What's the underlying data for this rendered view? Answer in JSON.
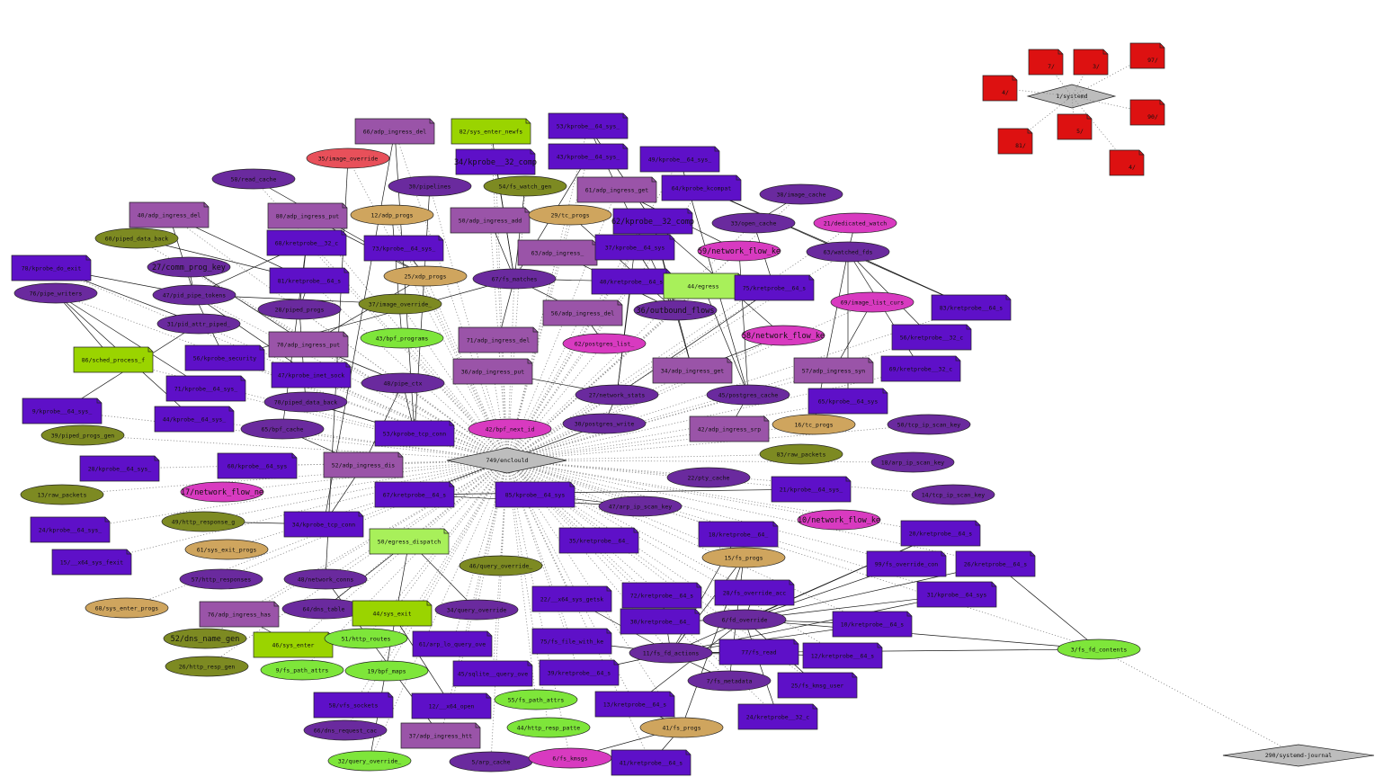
{
  "palette": {
    "prog_dark": "#5e10c8",
    "prog_mid": "#9a54a8",
    "map_purple": "#6a2a9e",
    "map_olive": "#7d8a22",
    "map_tan": "#cfa55e",
    "map_pink": "#d83ac0",
    "map_green": "#7ee63a",
    "map_red": "#e8505a",
    "note_green": "#9ad400",
    "note_lime": "#a8f05a",
    "proc_gray": "#bdbdbd",
    "proc_red": "#dd1111"
  },
  "hubs": {
    "enclould": "749/enclould",
    "systemd": "1/systemd",
    "journal": "290/systemd-journal"
  },
  "nodes": [
    {
      "id": "n1",
      "label": "66/adp_ingress_del",
      "shape": "note",
      "color": "prog_mid"
    },
    {
      "id": "n2",
      "label": "82/sys_enter_newfs",
      "shape": "note",
      "color": "note_green"
    },
    {
      "id": "n3",
      "label": "53/kprobe__64_sys_",
      "shape": "note",
      "color": "prog_dark"
    },
    {
      "id": "n4",
      "label": "35/image_override",
      "shape": "ellipse",
      "color": "map_red"
    },
    {
      "id": "n5",
      "label": "34/kprobe__32_comp",
      "shape": "note",
      "color": "prog_dark",
      "big": true
    },
    {
      "id": "n6",
      "label": "43/kprobe__64_sys_",
      "shape": "note",
      "color": "prog_dark"
    },
    {
      "id": "n7",
      "label": "49/kprobe__64_sys_",
      "shape": "note",
      "color": "prog_dark"
    },
    {
      "id": "n8",
      "label": "58/read_cache",
      "shape": "ellipse",
      "color": "map_purple"
    },
    {
      "id": "n9",
      "label": "30/pipelines",
      "shape": "ellipse",
      "color": "map_purple"
    },
    {
      "id": "n10",
      "label": "54/fs_watch_gen",
      "shape": "ellipse",
      "color": "map_olive"
    },
    {
      "id": "n11",
      "label": "61/adp_ingress_get",
      "shape": "note",
      "color": "prog_mid"
    },
    {
      "id": "n12",
      "label": "64/kprobe_kcompat",
      "shape": "note",
      "color": "prog_dark"
    },
    {
      "id": "n13",
      "label": "38/image_cache",
      "shape": "ellipse",
      "color": "map_purple"
    },
    {
      "id": "n14",
      "label": "40/adp_ingress_del",
      "shape": "note",
      "color": "prog_mid"
    },
    {
      "id": "n15",
      "label": "80/adp_ingress_put",
      "shape": "note",
      "color": "prog_mid"
    },
    {
      "id": "n16",
      "label": "12/adp_progs",
      "shape": "ellipse",
      "color": "map_tan"
    },
    {
      "id": "n17",
      "label": "50/adp_ingress_add",
      "shape": "note",
      "color": "prog_mid"
    },
    {
      "id": "n18",
      "label": "29/tc_progs",
      "shape": "ellipse",
      "color": "map_tan"
    },
    {
      "id": "n19",
      "label": "62/kprobe__32_comp",
      "shape": "note",
      "color": "prog_dark",
      "big": true
    },
    {
      "id": "n20",
      "label": "33/open_cache",
      "shape": "ellipse",
      "color": "map_purple"
    },
    {
      "id": "n21",
      "label": "21/dedicated_watch",
      "shape": "ellipse",
      "color": "map_pink"
    },
    {
      "id": "n22",
      "label": "60/piped_data_back",
      "shape": "ellipse",
      "color": "map_olive"
    },
    {
      "id": "n23",
      "label": "68/kretprobe__32_c",
      "shape": "note",
      "color": "prog_dark"
    },
    {
      "id": "n24",
      "label": "73/kprobe__64_sys_",
      "shape": "note",
      "color": "prog_dark"
    },
    {
      "id": "n25",
      "label": "63/adp_ingress_",
      "shape": "note",
      "color": "prog_mid"
    },
    {
      "id": "n26",
      "label": "37/kprobe__64_sys",
      "shape": "note",
      "color": "prog_dark"
    },
    {
      "id": "n27",
      "label": "59/network_flow_ke",
      "shape": "ellipse",
      "color": "map_pink",
      "big": true
    },
    {
      "id": "n28",
      "label": "63/watched_fds",
      "shape": "ellipse",
      "color": "map_purple"
    },
    {
      "id": "n29",
      "label": "78/kprobe_do_exit",
      "shape": "note",
      "color": "prog_dark"
    },
    {
      "id": "n30",
      "label": "27/comm_prog_key",
      "shape": "ellipse",
      "color": "map_purple",
      "big": true
    },
    {
      "id": "n31",
      "label": "81/kretprobe__64_s",
      "shape": "note",
      "color": "prog_dark"
    },
    {
      "id": "n32",
      "label": "25/xdp_progs",
      "shape": "ellipse",
      "color": "map_tan"
    },
    {
      "id": "n33",
      "label": "67/fs_matches",
      "shape": "ellipse",
      "color": "map_purple"
    },
    {
      "id": "n34",
      "label": "40/kretprobe__64_s",
      "shape": "note",
      "color": "prog_dark"
    },
    {
      "id": "n35",
      "label": "44/egress",
      "shape": "note",
      "color": "note_lime"
    },
    {
      "id": "n36",
      "label": "75/kretprobe__64_s",
      "shape": "note",
      "color": "prog_dark"
    },
    {
      "id": "n37",
      "label": "76/pipe_writers",
      "shape": "ellipse",
      "color": "map_purple"
    },
    {
      "id": "n38",
      "label": "47/pid_pipe_tokens",
      "shape": "ellipse",
      "color": "map_purple"
    },
    {
      "id": "n39",
      "label": "28/piped_progs",
      "shape": "ellipse",
      "color": "map_purple"
    },
    {
      "id": "n40",
      "label": "37/image_override_",
      "shape": "ellipse",
      "color": "map_olive"
    },
    {
      "id": "n41",
      "label": "56/adp_ingress_del",
      "shape": "note",
      "color": "prog_mid"
    },
    {
      "id": "n42",
      "label": "36/outbound_flows",
      "shape": "ellipse",
      "color": "map_purple",
      "big": true
    },
    {
      "id": "n43",
      "label": "69/image_list_curs",
      "shape": "ellipse",
      "color": "map_pink"
    },
    {
      "id": "n44",
      "label": "83/kretprobe__64_s",
      "shape": "note",
      "color": "prog_dark"
    },
    {
      "id": "n45",
      "label": "31/pid_attr_piped_",
      "shape": "ellipse",
      "color": "map_purple"
    },
    {
      "id": "n46",
      "label": "70/adp_ingress_put",
      "shape": "note",
      "color": "prog_mid"
    },
    {
      "id": "n47",
      "label": "43/bpf_programs",
      "shape": "ellipse",
      "color": "map_green"
    },
    {
      "id": "n48",
      "label": "71/adp_ingress_del",
      "shape": "note",
      "color": "prog_mid"
    },
    {
      "id": "n49",
      "label": "62/postgres_list_",
      "shape": "ellipse",
      "color": "map_pink"
    },
    {
      "id": "n50",
      "label": "58/network_flow_ke",
      "shape": "ellipse",
      "color": "map_pink",
      "big": true
    },
    {
      "id": "n51",
      "label": "56/kretprobe__32_c",
      "shape": "note",
      "color": "prog_dark"
    },
    {
      "id": "n52",
      "label": "86/sched_process_f",
      "shape": "note",
      "color": "note_green"
    },
    {
      "id": "n53",
      "label": "56/kprobe_security",
      "shape": "note",
      "color": "prog_dark"
    },
    {
      "id": "n54",
      "label": "47/kprobe_inet_sock",
      "shape": "note",
      "color": "prog_dark"
    },
    {
      "id": "n55",
      "label": "36/adp_ingress_put",
      "shape": "note",
      "color": "prog_mid"
    },
    {
      "id": "n56",
      "label": "34/adp_ingress_get",
      "shape": "note",
      "color": "prog_mid"
    },
    {
      "id": "n57",
      "label": "57/adp_ingress_syn",
      "shape": "note",
      "color": "prog_mid"
    },
    {
      "id": "n58",
      "label": "69/kretprobe__32_c",
      "shape": "note",
      "color": "prog_dark"
    },
    {
      "id": "n59",
      "label": "71/kprobe__64_sys_",
      "shape": "note",
      "color": "prog_dark"
    },
    {
      "id": "n60",
      "label": "48/pipe_ctx",
      "shape": "ellipse",
      "color": "map_purple"
    },
    {
      "id": "n61",
      "label": "27/network_stats",
      "shape": "ellipse",
      "color": "map_purple"
    },
    {
      "id": "n62",
      "label": "45/postgres_cache",
      "shape": "ellipse",
      "color": "map_purple"
    },
    {
      "id": "n63",
      "label": "65/kprobe__64_sys",
      "shape": "note",
      "color": "prog_dark"
    },
    {
      "id": "n64",
      "label": "9/kprobe__64_sys_",
      "shape": "note",
      "color": "prog_dark"
    },
    {
      "id": "n65",
      "label": "44/kprobe__64_sys_",
      "shape": "note",
      "color": "prog_dark"
    },
    {
      "id": "n66",
      "label": "70/piped_data_back",
      "shape": "ellipse",
      "color": "map_purple"
    },
    {
      "id": "n67",
      "label": "30/postgres_write",
      "shape": "ellipse",
      "color": "map_purple"
    },
    {
      "id": "n68",
      "label": "42/adp_ingress_srp",
      "shape": "note",
      "color": "prog_mid"
    },
    {
      "id": "n69",
      "label": "16/tc_progs",
      "shape": "ellipse",
      "color": "map_tan"
    },
    {
      "id": "n70",
      "label": "50/tcp_ip_scan_key",
      "shape": "ellipse",
      "color": "map_purple"
    },
    {
      "id": "n71",
      "label": "39/piped_progs_gen",
      "shape": "ellipse",
      "color": "map_olive"
    },
    {
      "id": "n72",
      "label": "65/bpf_cache",
      "shape": "ellipse",
      "color": "map_purple"
    },
    {
      "id": "n73",
      "label": "53/kprobe_tcp_conn",
      "shape": "note",
      "color": "prog_dark"
    },
    {
      "id": "n74",
      "label": "42/bpf_next_id",
      "shape": "ellipse",
      "color": "map_pink"
    },
    {
      "id": "n75",
      "label": "28/kprobe__64_sys_",
      "shape": "note",
      "color": "prog_dark"
    },
    {
      "id": "n76",
      "label": "60/kprobe__64_sys",
      "shape": "note",
      "color": "prog_dark"
    },
    {
      "id": "n77",
      "label": "52/adp_ingress_dis",
      "shape": "note",
      "color": "prog_mid"
    },
    {
      "id": "n78",
      "label": "83/raw_packets",
      "shape": "ellipse",
      "color": "map_olive"
    },
    {
      "id": "n79",
      "label": "18/arp_ip_scan_key",
      "shape": "ellipse",
      "color": "map_purple"
    },
    {
      "id": "n80",
      "label": "13/raw_packets",
      "shape": "ellipse",
      "color": "map_olive"
    },
    {
      "id": "n81",
      "label": "17/network_flow_ne",
      "shape": "ellipse",
      "color": "map_pink",
      "big": true
    },
    {
      "id": "n82",
      "label": "67/kretprobe__64_s",
      "shape": "note",
      "color": "prog_dark"
    },
    {
      "id": "n83",
      "label": "85/kprobe__64_sys",
      "shape": "note",
      "color": "prog_dark"
    },
    {
      "id": "n84",
      "label": "22/pty_cache",
      "shape": "ellipse",
      "color": "map_purple"
    },
    {
      "id": "n85",
      "label": "21/kprobe__64_sys_",
      "shape": "note",
      "color": "prog_dark"
    },
    {
      "id": "n86",
      "label": "14/tcp_ip_scan_key",
      "shape": "ellipse",
      "color": "map_purple"
    },
    {
      "id": "n87",
      "label": "47/arp_ip_scan_key",
      "shape": "ellipse",
      "color": "map_purple"
    },
    {
      "id": "n88",
      "label": "49/http_response_g",
      "shape": "ellipse",
      "color": "map_olive"
    },
    {
      "id": "n89",
      "label": "34/kprobe_tcp_conn",
      "shape": "note",
      "color": "prog_dark"
    },
    {
      "id": "n90",
      "label": "10/network_flow_ke",
      "shape": "ellipse",
      "color": "map_pink",
      "big": true
    },
    {
      "id": "n91",
      "label": "24/kprobe__64_sys_",
      "shape": "note",
      "color": "prog_dark"
    },
    {
      "id": "n92",
      "label": "61/sys_exit_progs",
      "shape": "ellipse",
      "color": "map_tan"
    },
    {
      "id": "n93",
      "label": "50/egress_dispatch",
      "shape": "note",
      "color": "note_lime"
    },
    {
      "id": "n94",
      "label": "35/kretprobe__64_",
      "shape": "note",
      "color": "prog_dark"
    },
    {
      "id": "n95",
      "label": "18/kretprobe__64_",
      "shape": "note",
      "color": "prog_dark"
    },
    {
      "id": "n96",
      "label": "20/kretprobe__64_s",
      "shape": "note",
      "color": "prog_dark"
    },
    {
      "id": "n97",
      "label": "15/__x64_sys_fexit",
      "shape": "note",
      "color": "prog_dark"
    },
    {
      "id": "n98",
      "label": "15/fs_progs",
      "shape": "ellipse",
      "color": "map_tan"
    },
    {
      "id": "n99",
      "label": "99/fs_override_con",
      "shape": "note",
      "color": "prog_dark"
    },
    {
      "id": "n100",
      "label": "26/kretprobe__64_s",
      "shape": "note",
      "color": "prog_dark"
    },
    {
      "id": "n101",
      "label": "57/http_responses",
      "shape": "ellipse",
      "color": "map_purple"
    },
    {
      "id": "n102",
      "label": "48/network_conns",
      "shape": "ellipse",
      "color": "map_purple"
    },
    {
      "id": "n103",
      "label": "46/query_override_",
      "shape": "ellipse",
      "color": "map_olive"
    },
    {
      "id": "n104",
      "label": "22/__x64_sys_getsk",
      "shape": "note",
      "color": "prog_dark"
    },
    {
      "id": "n105",
      "label": "72/kretprobe__64_s",
      "shape": "note",
      "color": "prog_dark"
    },
    {
      "id": "n106",
      "label": "28/fs_override_acc",
      "shape": "note",
      "color": "prog_dark"
    },
    {
      "id": "n107",
      "label": "31/kprobe__64_sys",
      "shape": "note",
      "color": "prog_dark"
    },
    {
      "id": "n108",
      "label": "68/sys_enter_progs",
      "shape": "ellipse",
      "color": "map_tan"
    },
    {
      "id": "n109",
      "label": "76/adp_ingress_has",
      "shape": "note",
      "color": "prog_mid"
    },
    {
      "id": "n110",
      "label": "64/dns_table",
      "shape": "ellipse",
      "color": "map_purple"
    },
    {
      "id": "n111",
      "label": "44/sys_exit",
      "shape": "note",
      "color": "note_green"
    },
    {
      "id": "n112",
      "label": "34/query_override",
      "shape": "ellipse",
      "color": "map_purple"
    },
    {
      "id": "n113",
      "label": "30/kretprobe__64_",
      "shape": "note",
      "color": "prog_dark"
    },
    {
      "id": "n114",
      "label": "6/fd_override",
      "shape": "ellipse",
      "color": "map_purple"
    },
    {
      "id": "n115",
      "label": "10/kretprobe__64_s",
      "shape": "note",
      "color": "prog_dark"
    },
    {
      "id": "n116",
      "label": "52/dns_name_gen",
      "shape": "ellipse",
      "color": "map_olive",
      "big": true
    },
    {
      "id": "n117",
      "label": "46/sys_enter",
      "shape": "note",
      "color": "note_green"
    },
    {
      "id": "n118",
      "label": "51/http_routes",
      "shape": "ellipse",
      "color": "map_green"
    },
    {
      "id": "n119",
      "label": "61/arp_lo_query_ove",
      "shape": "note",
      "color": "prog_dark"
    },
    {
      "id": "n120",
      "label": "75/fs_file_with_ke",
      "shape": "note",
      "color": "prog_dark"
    },
    {
      "id": "n121",
      "label": "11/fs_fd_actions",
      "shape": "ellipse",
      "color": "map_purple"
    },
    {
      "id": "n122",
      "label": "77/fs_read",
      "shape": "note",
      "color": "prog_dark"
    },
    {
      "id": "n123",
      "label": "12/kretprobe__64_s",
      "shape": "note",
      "color": "prog_dark"
    },
    {
      "id": "n124",
      "label": "3/fs_fd_contents",
      "shape": "ellipse",
      "color": "map_green"
    },
    {
      "id": "n125",
      "label": "26/http_resp_gen",
      "shape": "ellipse",
      "color": "map_olive"
    },
    {
      "id": "n126",
      "label": "9/fs_path_attrs",
      "shape": "ellipse",
      "color": "map_green"
    },
    {
      "id": "n127",
      "label": "19/bpf_maps",
      "shape": "ellipse",
      "color": "map_green"
    },
    {
      "id": "n128",
      "label": "45/sqlite__query_ove",
      "shape": "note",
      "color": "prog_dark"
    },
    {
      "id": "n129",
      "label": "39/kretprobe__64_s",
      "shape": "note",
      "color": "prog_dark"
    },
    {
      "id": "n130",
      "label": "7/fs_metadata",
      "shape": "ellipse",
      "color": "map_purple"
    },
    {
      "id": "n131",
      "label": "25/fs_kmsg_user",
      "shape": "note",
      "color": "prog_dark"
    },
    {
      "id": "n132",
      "label": "58/vfs_sockets",
      "shape": "note",
      "color": "prog_dark"
    },
    {
      "id": "n133",
      "label": "12/__x64_open",
      "shape": "note",
      "color": "prog_dark"
    },
    {
      "id": "n134",
      "label": "55/fs_path_attrs",
      "shape": "ellipse",
      "color": "map_green"
    },
    {
      "id": "n135",
      "label": "13/kretprobe__64_s",
      "shape": "note",
      "color": "prog_dark"
    },
    {
      "id": "n136",
      "label": "24/kretprobe__32_c",
      "shape": "note",
      "color": "prog_dark"
    },
    {
      "id": "n137",
      "label": "66/dns_request_cac",
      "shape": "ellipse",
      "color": "map_purple"
    },
    {
      "id": "n138",
      "label": "37/adp_ingress_htt",
      "shape": "note",
      "color": "prog_mid"
    },
    {
      "id": "n139",
      "label": "44/http_resp_patte",
      "shape": "ellipse",
      "color": "map_green"
    },
    {
      "id": "n140",
      "label": "41/fs_progs",
      "shape": "ellipse",
      "color": "map_tan"
    },
    {
      "id": "n141",
      "label": "32/query_override_",
      "shape": "ellipse",
      "color": "map_green"
    },
    {
      "id": "n142",
      "label": "5/arp_cache",
      "shape": "ellipse",
      "color": "map_purple"
    },
    {
      "id": "n143",
      "label": "6/fs_kmsgs",
      "shape": "ellipse",
      "color": "map_pink"
    },
    {
      "id": "n144",
      "label": "41/kretprobe__64_s",
      "shape": "note",
      "color": "prog_dark"
    }
  ],
  "systemd_children": [
    "7/",
    "3/",
    "97/",
    "4/",
    "90/",
    "5/",
    "81/",
    "4/"
  ]
}
